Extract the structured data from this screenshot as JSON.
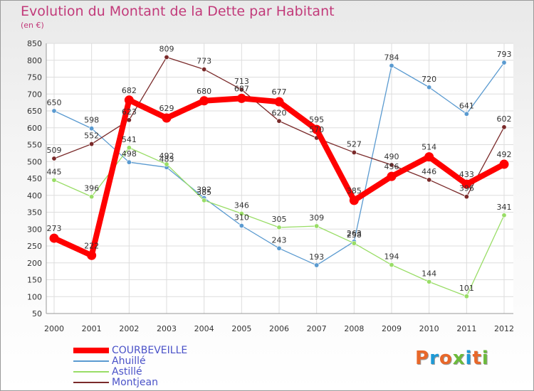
{
  "title": "Evolution du Montant de la Dette par Habitant",
  "subtitle": "(en €)",
  "logo": {
    "text": "Proxiti",
    "colors": [
      "#e8682a",
      "#1e9ad6",
      "#e8682a",
      "#6cbb3c",
      "#1e9ad6",
      "#e8682a",
      "#6cbb3c"
    ]
  },
  "chart_data": {
    "type": "line",
    "title": "Evolution du Montant de la Dette par Habitant",
    "subtitle": "(en €)",
    "x": [
      "2000",
      "2001",
      "2002",
      "2003",
      "2004",
      "2005",
      "2006",
      "2007",
      "2008",
      "2009",
      "2010",
      "2011",
      "2012"
    ],
    "ylim": [
      50,
      850
    ],
    "yticks": [
      50,
      100,
      150,
      200,
      250,
      300,
      350,
      400,
      450,
      500,
      550,
      600,
      650,
      700,
      750,
      800,
      850
    ],
    "grid": true,
    "legend": "bottom-left",
    "series": [
      {
        "name": "COURBEVEILLE",
        "color": "#ff0000",
        "values": [
          273,
          222,
          682,
          629,
          680,
          687,
          677,
          595,
          385,
          456,
          514,
          433,
          492
        ],
        "labels": [
          "273",
          "222",
          "682",
          "629",
          "680",
          "687",
          "677",
          "595",
          "385",
          "456",
          "514",
          "433",
          "492"
        ]
      },
      {
        "name": "Ahuillé",
        "color": "#5a9ad0",
        "values": [
          650,
          598,
          498,
          483,
          392,
          310,
          243,
          193,
          263,
          784,
          720,
          641,
          793
        ],
        "labels": [
          "650",
          "598",
          "498",
          "483",
          "392",
          "310",
          "243",
          "193",
          "263",
          "784",
          "720",
          "641",
          "793"
        ]
      },
      {
        "name": "Astillé",
        "color": "#99dd66",
        "values": [
          445,
          396,
          541,
          492,
          385,
          346,
          305,
          309,
          258,
          194,
          144,
          101,
          341
        ],
        "labels": [
          "445",
          "396",
          "541",
          "492",
          "385",
          "346",
          "305",
          "309",
          "258",
          "194",
          "144",
          "101",
          "341"
        ]
      },
      {
        "name": "Montjean",
        "color": "#7a2a2a",
        "values": [
          509,
          552,
          623,
          809,
          773,
          713,
          620,
          570,
          527,
          490,
          446,
          396,
          602
        ],
        "labels": [
          "509",
          "552",
          "623",
          "809",
          "773",
          "713",
          "620",
          "570",
          "527",
          "490",
          "446",
          "396",
          "602"
        ]
      }
    ]
  }
}
